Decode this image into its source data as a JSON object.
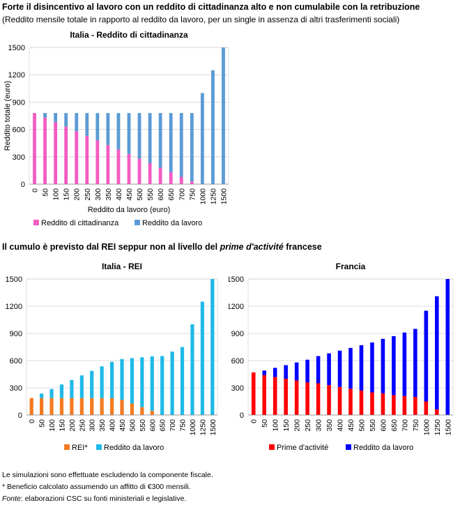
{
  "header": {
    "title": "Forte il disincentivo al lavoro con un reddito di cittadinanza alto e non cumulabile con la retribuzione",
    "subtitle": "(Reddito mensile totale in rapporto al reddito da lavoro, per un single in assenza di altri trasferimenti sociali)"
  },
  "section2": {
    "text_before": "Il cumulo è previsto dal REI seppur non al livello del ",
    "text_italic": "prime d'activité",
    "text_after": " francese"
  },
  "notes": {
    "line1": "Le simulazioni sono effettuate escludendo la componente fiscale.",
    "line2": "* Beneficio calcolato assumendo un affitto di €300 mensili.",
    "source_label": "Fonte",
    "source_text": ": elaborazioni CSC su fonti ministeriali e legislative."
  },
  "chart_data": [
    {
      "type": "bar",
      "stacked": true,
      "title": "Italia - Reddito di cittadinanza",
      "xlabel": "Reddito da lavoro (euro)",
      "ylabel": "Reddito totale (euro)",
      "ylim": [
        0,
        1500
      ],
      "yticks": [
        0,
        300,
        600,
        900,
        1200,
        1500
      ],
      "categories": [
        "0",
        "50",
        "100",
        "150",
        "200",
        "250",
        "300",
        "350",
        "400",
        "450",
        "500",
        "550",
        "600",
        "650",
        "700",
        "750",
        "1000",
        "1250",
        "1500"
      ],
      "series": [
        {
          "name": "Reddito di cittadinanza",
          "color": "#f35cc2",
          "values": [
            780,
            730,
            680,
            630,
            580,
            530,
            480,
            430,
            380,
            330,
            280,
            230,
            180,
            130,
            80,
            30,
            0,
            0,
            0
          ]
        },
        {
          "name": "Reddito da lavoro",
          "color": "#5b9bd5",
          "values": [
            0,
            50,
            100,
            150,
            200,
            250,
            300,
            350,
            400,
            450,
            500,
            550,
            600,
            650,
            700,
            750,
            1000,
            1250,
            1500
          ]
        }
      ],
      "grid": true,
      "legend": "bottom"
    },
    {
      "type": "bar",
      "stacked": true,
      "title": "Italia - REI",
      "xlabel": "",
      "ylabel": "",
      "ylim": [
        0,
        1500
      ],
      "yticks": [
        0,
        300,
        600,
        900,
        1200,
        1500
      ],
      "categories": [
        "0",
        "50",
        "100",
        "150",
        "200",
        "250",
        "300",
        "350",
        "400",
        "450",
        "500",
        "550",
        "600",
        "650",
        "700",
        "750",
        "1000",
        "1250",
        "1500"
      ],
      "series": [
        {
          "name": "REI*",
          "color": "#f47a20",
          "values": [
            187,
            187,
            187,
            187,
            187,
            187,
            187,
            187,
            187,
            167,
            127,
            87,
            47,
            0,
            0,
            0,
            0,
            0,
            0
          ]
        },
        {
          "name": "Reddito da lavoro",
          "color": "#1fb9e8",
          "values": [
            0,
            50,
            100,
            150,
            200,
            250,
            300,
            350,
            400,
            450,
            500,
            550,
            600,
            650,
            700,
            750,
            1000,
            1250,
            1500
          ]
        }
      ],
      "grid": true,
      "legend": "bottom"
    },
    {
      "type": "bar",
      "stacked": true,
      "title": "Francia",
      "xlabel": "",
      "ylabel": "",
      "ylim": [
        0,
        1500
      ],
      "yticks": [
        0,
        300,
        600,
        900,
        1200,
        1500
      ],
      "categories": [
        "0",
        "50",
        "100",
        "150",
        "200",
        "250",
        "300",
        "350",
        "400",
        "450",
        "500",
        "550",
        "600",
        "650",
        "700",
        "750",
        "1000",
        "1250",
        "1500"
      ],
      "series": [
        {
          "name": "Prime d'activité",
          "color": "#ff0000",
          "values": [
            470,
            440,
            420,
            400,
            380,
            360,
            350,
            330,
            310,
            290,
            270,
            250,
            240,
            220,
            210,
            200,
            150,
            60,
            0
          ]
        },
        {
          "name": "Reddito da lavoro",
          "color": "#0000ff",
          "values": [
            0,
            50,
            100,
            150,
            200,
            250,
            300,
            350,
            400,
            450,
            500,
            550,
            600,
            650,
            700,
            750,
            1000,
            1250,
            1500
          ]
        }
      ],
      "grid": true,
      "legend": "bottom"
    }
  ]
}
